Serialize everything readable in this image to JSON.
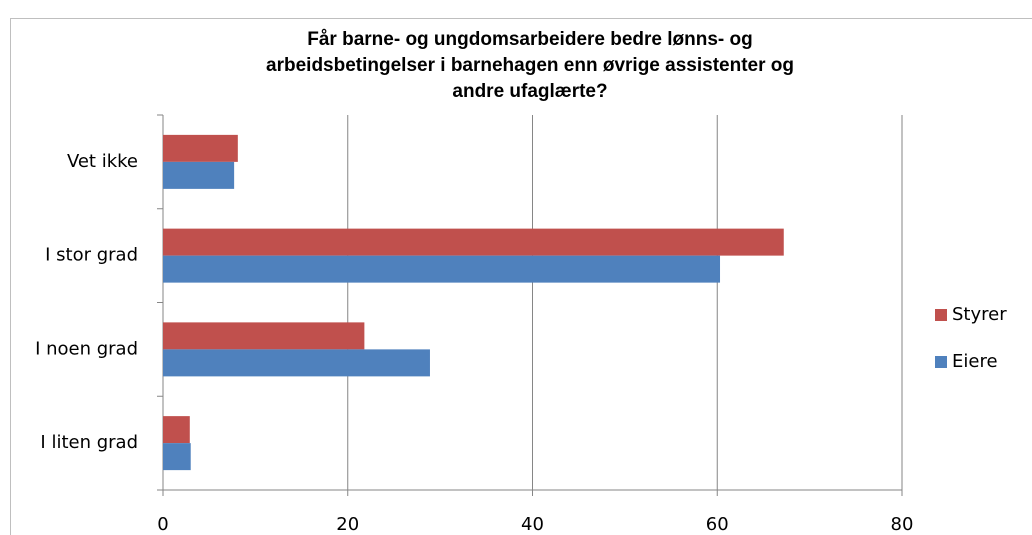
{
  "chart_data": {
    "type": "hbar",
    "title": [
      "Får barne- og ungdomsarbeidere bedre lønns- og",
      "arbeidsbetingelser i barnehagen enn øvrige assistenter og",
      "andre ufaglærte?"
    ],
    "categories": [
      "Vet ikke",
      "I stor grad",
      "I noen grad",
      "I liten grad"
    ],
    "series": [
      {
        "name": "Styrer",
        "color": "#c0504d",
        "values": [
          8.1,
          67.2,
          21.8,
          2.9
        ]
      },
      {
        "name": "Eiere",
        "color": "#4f81bd",
        "values": [
          7.7,
          60.3,
          28.9,
          3.0
        ]
      }
    ],
    "xlim": [
      0,
      80
    ],
    "xticks": [
      0,
      20,
      40,
      60,
      80
    ],
    "grid": true,
    "legend": "right"
  }
}
